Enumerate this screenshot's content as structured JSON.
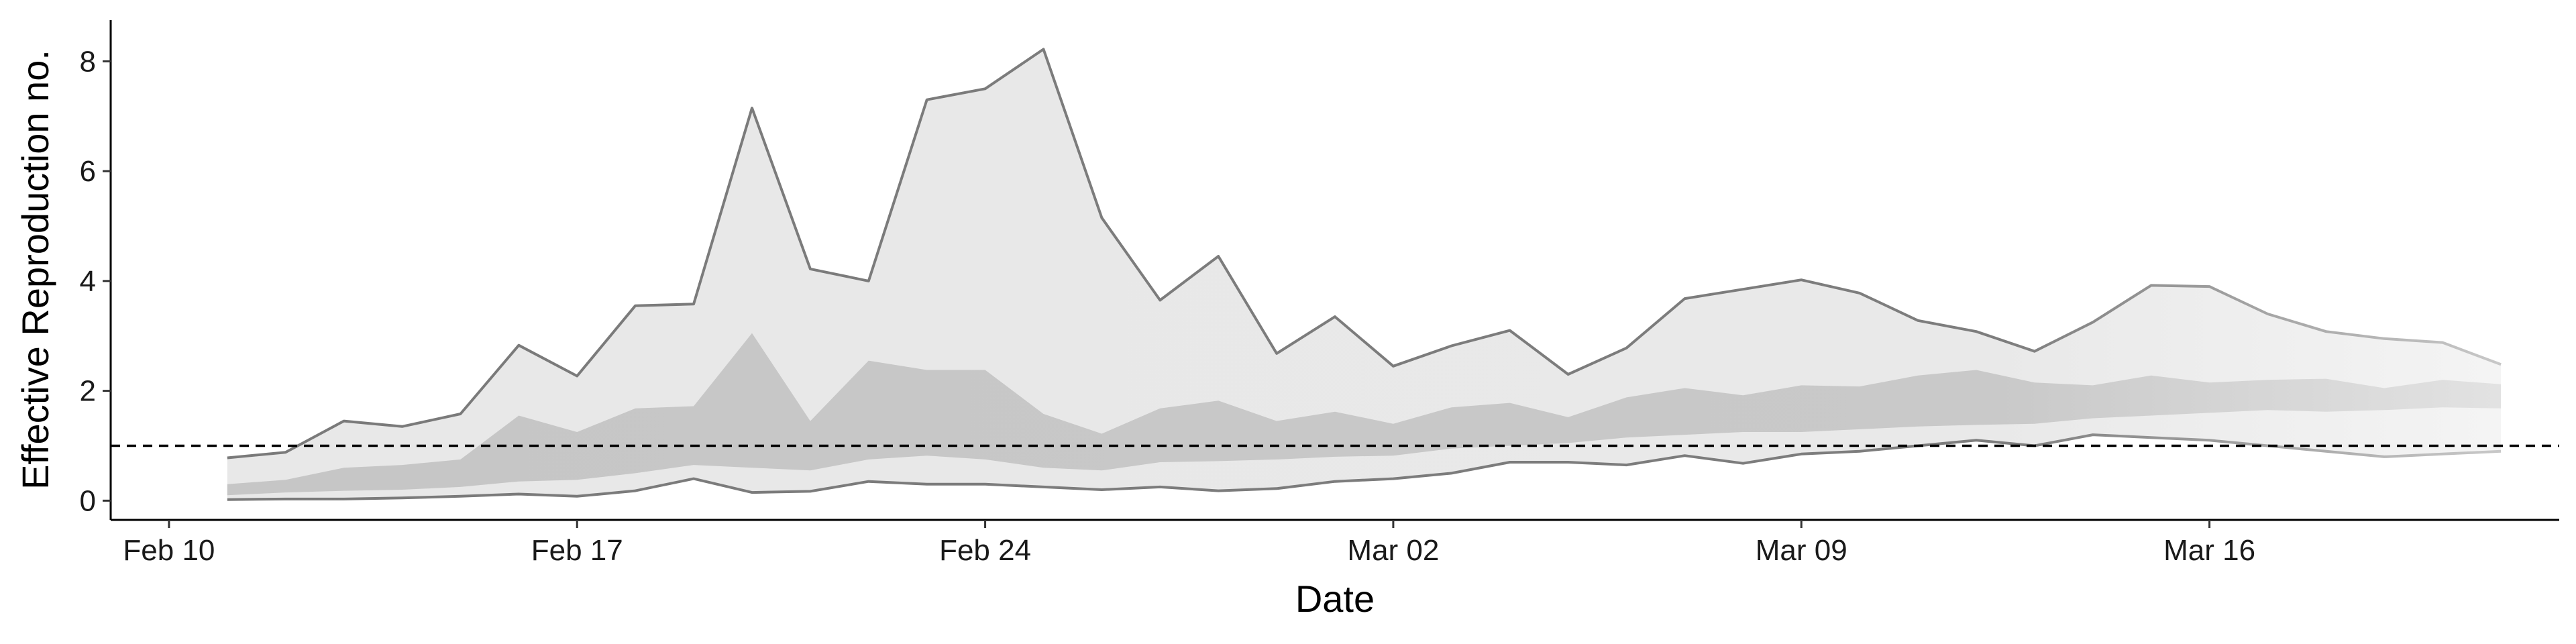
{
  "chart_data": {
    "type": "area",
    "title": "",
    "xlabel": "Date",
    "ylabel": "Effective Reproduction no.",
    "x_ticks": [
      "Feb 10",
      "Feb 17",
      "Feb 24",
      "Mar 02",
      "Mar 09",
      "Mar 16"
    ],
    "y_ticks": [
      0,
      2,
      4,
      6,
      8
    ],
    "xlim": [
      "2020-02-09",
      "2020-03-22"
    ],
    "ylim": [
      -0.35,
      8.75
    ],
    "reference_line": {
      "y": 1,
      "style": "dashed"
    },
    "grid": false,
    "x": [
      "2020-02-11",
      "2020-02-12",
      "2020-02-13",
      "2020-02-14",
      "2020-02-15",
      "2020-02-16",
      "2020-02-17",
      "2020-02-18",
      "2020-02-19",
      "2020-02-20",
      "2020-02-21",
      "2020-02-22",
      "2020-02-23",
      "2020-02-24",
      "2020-02-25",
      "2020-02-26",
      "2020-02-27",
      "2020-02-28",
      "2020-02-29",
      "2020-03-01",
      "2020-03-02",
      "2020-03-03",
      "2020-03-04",
      "2020-03-05",
      "2020-03-06",
      "2020-03-07",
      "2020-03-08",
      "2020-03-09",
      "2020-03-10",
      "2020-03-11",
      "2020-03-12",
      "2020-03-13",
      "2020-03-14",
      "2020-03-15",
      "2020-03-16",
      "2020-03-17",
      "2020-03-18",
      "2020-03-19",
      "2020-03-20",
      "2020-03-21"
    ],
    "series": [
      {
        "lower": [
          0.02,
          0.03,
          0.03,
          0.05,
          0.08,
          0.12,
          0.08,
          0.18,
          0.4,
          0.15,
          0.17,
          0.35,
          0.3,
          0.3,
          0.25,
          0.2,
          0.25,
          0.18,
          0.22,
          0.35,
          0.4,
          0.5,
          0.7,
          0.7,
          0.65,
          0.82,
          0.68,
          0.85,
          0.9,
          1.0,
          1.1,
          1.0,
          1.2,
          1.15,
          1.1,
          1.0,
          0.9,
          0.8,
          0.85,
          0.9
        ],
        "upper": [
          0.78,
          0.88,
          1.45,
          1.35,
          1.58,
          2.83,
          2.27,
          3.55,
          3.58,
          7.15,
          4.22,
          4.0,
          7.3,
          7.5,
          8.22,
          5.15,
          3.65,
          4.45,
          2.68,
          3.35,
          2.45,
          2.82,
          3.1,
          2.3,
          2.78,
          3.68,
          3.85,
          4.02,
          3.78,
          3.28,
          3.08,
          2.72,
          3.25,
          3.92,
          3.9,
          3.4,
          3.08,
          2.95,
          2.88,
          2.48
        ]
      },
      {
        "lower": [
          0.1,
          0.15,
          0.18,
          0.2,
          0.25,
          0.35,
          0.38,
          0.5,
          0.65,
          0.6,
          0.55,
          0.75,
          0.82,
          0.75,
          0.6,
          0.55,
          0.7,
          0.72,
          0.75,
          0.8,
          0.82,
          0.95,
          1.0,
          1.05,
          1.15,
          1.2,
          1.25,
          1.25,
          1.3,
          1.35,
          1.38,
          1.4,
          1.5,
          1.55,
          1.6,
          1.65,
          1.62,
          1.65,
          1.7,
          1.68
        ],
        "upper": [
          0.3,
          0.38,
          0.6,
          0.65,
          0.75,
          1.55,
          1.25,
          1.68,
          1.72,
          3.05,
          1.45,
          2.55,
          2.38,
          2.38,
          1.58,
          1.22,
          1.68,
          1.82,
          1.45,
          1.62,
          1.4,
          1.7,
          1.78,
          1.52,
          1.88,
          2.05,
          1.92,
          2.1,
          2.08,
          2.28,
          2.38,
          2.15,
          2.1,
          2.28,
          2.15,
          2.2,
          2.22,
          2.05,
          2.2,
          2.12
        ]
      }
    ]
  }
}
